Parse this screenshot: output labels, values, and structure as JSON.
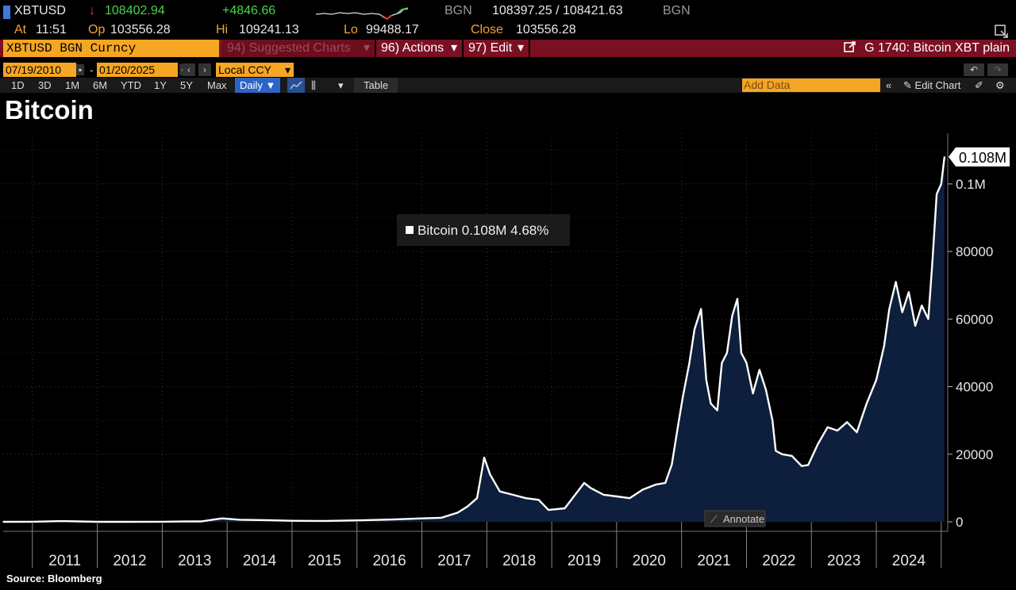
{
  "quote": {
    "ticker": "XBTUSD",
    "arrow": "↓",
    "last": "108402.94",
    "change": "+4846.66",
    "source_a": "BGN",
    "bid_ask": "108397.25 / 108421.63",
    "source_b": "BGN",
    "at_label": "At",
    "at_time": "11:51",
    "op_label": "Op",
    "op_value": "103556.28",
    "hi_label": "Hi",
    "hi_value": "109241.13",
    "lo_label": "Lo",
    "lo_value": "99488.17",
    "close_label": "Close",
    "close_value": "103556.28"
  },
  "toolbar": {
    "security": "XBTUSD BGN Curncy",
    "suggested": "94) Suggested Charts",
    "actions": "96) Actions",
    "edit": "97) Edit",
    "chart_code": "G 1740: Bitcoin XBT plain",
    "date_start": "07/19/2010",
    "date_sep": "-",
    "date_end": "01/20/2025",
    "currency": "Local CCY",
    "periods": [
      "1D",
      "3D",
      "1M",
      "6M",
      "YTD",
      "1Y",
      "5Y",
      "Max"
    ],
    "frequency": "Daily",
    "table": "Table",
    "add_data_placeholder": "Add Data",
    "edit_chart": "Edit Chart"
  },
  "chart_title": "Bitcoin",
  "source": "Source: Bloomberg",
  "colors": {
    "background": "#000000",
    "line": "#ffffff",
    "area_fill": "#0d1f3c",
    "grid": "#3a3a3a",
    "accent_orange": "#f5a623",
    "bar_red": "#7a1022",
    "up_green": "#4bd24b",
    "down_red": "#ff3b3b"
  },
  "chart_data": {
    "type": "area",
    "series": [
      {
        "name": "Bitcoin",
        "x": [
          2010.55,
          2011.0,
          2011.45,
          2012.0,
          2012.5,
          2013.0,
          2013.3,
          2013.6,
          2013.92,
          2014.2,
          2014.6,
          2015.0,
          2015.5,
          2016.0,
          2016.5,
          2017.0,
          2017.3,
          2017.55,
          2017.7,
          2017.85,
          2017.96,
          2018.05,
          2018.2,
          2018.4,
          2018.6,
          2018.8,
          2018.95,
          2019.2,
          2019.4,
          2019.5,
          2019.6,
          2019.8,
          2020.0,
          2020.2,
          2020.4,
          2020.6,
          2020.75,
          2020.85,
          2020.95,
          2021.02,
          2021.12,
          2021.2,
          2021.3,
          2021.38,
          2021.45,
          2021.55,
          2021.62,
          2021.7,
          2021.78,
          2021.86,
          2021.92,
          2022.0,
          2022.1,
          2022.2,
          2022.3,
          2022.4,
          2022.45,
          2022.55,
          2022.7,
          2022.85,
          2022.95,
          2023.1,
          2023.25,
          2023.4,
          2023.55,
          2023.7,
          2023.85,
          2024.0,
          2024.12,
          2024.2,
          2024.3,
          2024.4,
          2024.5,
          2024.6,
          2024.7,
          2024.8,
          2024.86,
          2024.93,
          2025.0,
          2025.05
        ],
        "values": [
          0,
          15,
          200,
          5,
          10,
          15,
          100,
          120,
          1000,
          600,
          500,
          300,
          250,
          430,
          650,
          1000,
          1200,
          2700,
          4500,
          7000,
          19000,
          14000,
          9000,
          8000,
          7000,
          6500,
          3500,
          4000,
          9000,
          11500,
          10000,
          8000,
          7500,
          7000,
          9500,
          11000,
          11500,
          17000,
          29000,
          37000,
          47000,
          57000,
          63000,
          42000,
          35000,
          33000,
          47000,
          50000,
          61000,
          66000,
          50000,
          47000,
          38000,
          45000,
          39000,
          30000,
          21000,
          20000,
          19500,
          16500,
          16800,
          23000,
          28000,
          27000,
          29500,
          26500,
          35000,
          42000,
          52000,
          63000,
          71000,
          62000,
          68000,
          58000,
          64000,
          60000,
          76000,
          97000,
          100000,
          108000
        ]
      }
    ],
    "xlim": [
      2010.55,
      2025.1
    ],
    "x_tick_labels": [
      "2011",
      "2012",
      "2013",
      "2014",
      "2015",
      "2016",
      "2017",
      "2018",
      "2019",
      "2020",
      "2021",
      "2022",
      "2023",
      "2024"
    ],
    "ylim": [
      0,
      115000
    ],
    "y_ticks": [
      0,
      20000,
      40000,
      60000,
      80000,
      100000
    ],
    "y_tick_labels": [
      "0",
      "20000",
      "40000",
      "60000",
      "80000",
      "0.1M"
    ],
    "last_value_label": "0.108M",
    "legend": {
      "label": "Bitcoin",
      "value": "0.108M",
      "change": "4.68%"
    },
    "annotate_label": "Annotate",
    "grid": true,
    "legend_position": "top-center"
  }
}
